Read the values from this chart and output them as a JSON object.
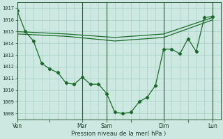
{
  "bg_color": "#cce8e0",
  "grid_color": "#a8d0c8",
  "line_color": "#1a6b2a",
  "dark_vline_color": "#2a5a3a",
  "xlabel": "Pression niveau de la mer( hPa )",
  "ylim": [
    1007.5,
    1017.5
  ],
  "yticks": [
    1008,
    1009,
    1010,
    1011,
    1012,
    1013,
    1014,
    1015,
    1016,
    1017
  ],
  "xtick_labels": [
    "Ven",
    "",
    "Mar",
    "Sam",
    "",
    "Dim",
    "",
    "Lun"
  ],
  "xtick_positions": [
    0,
    4,
    8,
    11,
    14,
    18,
    21,
    24
  ],
  "xlim": [
    0,
    25
  ],
  "line1_x": [
    0,
    1,
    2,
    3,
    4,
    5,
    6,
    7,
    8,
    9,
    10,
    11,
    12,
    13,
    14,
    15,
    16,
    17,
    18,
    19,
    20,
    21,
    22,
    23,
    24
  ],
  "line1_y": [
    1016.8,
    1015.0,
    1014.2,
    1012.3,
    1011.8,
    1011.5,
    1010.6,
    1010.5,
    1011.1,
    1010.5,
    1010.5,
    1009.7,
    1008.1,
    1008.0,
    1008.1,
    1009.0,
    1009.4,
    1010.4,
    1013.5,
    1013.5,
    1013.1,
    1014.4,
    1013.3,
    1016.2,
    1016.3
  ],
  "line2_x": [
    0,
    6,
    12,
    18,
    24
  ],
  "line2_y": [
    1015.0,
    1014.8,
    1014.5,
    1014.8,
    1016.2
  ],
  "line3_x": [
    0,
    6,
    12,
    18,
    24
  ],
  "line3_y": [
    1014.8,
    1014.6,
    1014.2,
    1014.5,
    1016.0
  ],
  "vline_positions": [
    0,
    8,
    11,
    18,
    24
  ],
  "figsize": [
    3.2,
    2.0
  ],
  "dpi": 100
}
